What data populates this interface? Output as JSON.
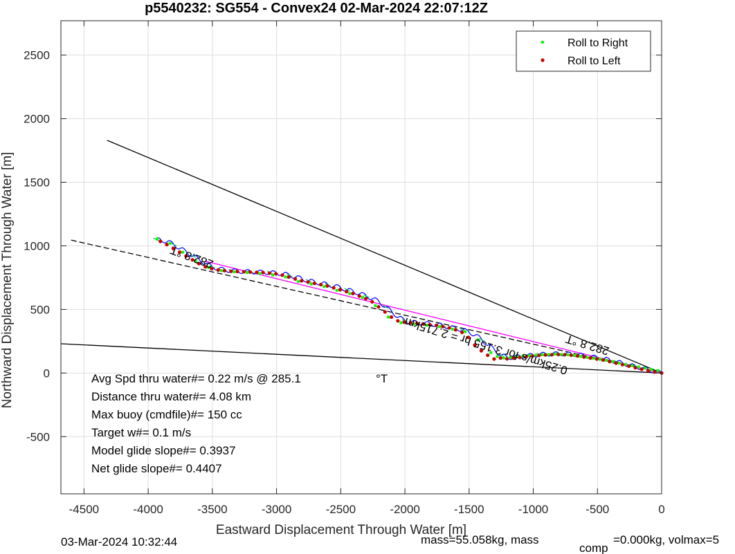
{
  "chart_data": {
    "type": "line",
    "title": "p5540232: SG554 - Convex24 02-Mar-2024 22:07:12Z",
    "xlabel": "Eastward Displacement Through Water [m]",
    "ylabel": "Northward Displacement Through Water [m]",
    "xlim": [
      -4680,
      0
    ],
    "ylim": [
      -950,
      2770
    ],
    "xticks": [
      -4500,
      -4000,
      -3500,
      -3000,
      -2500,
      -2000,
      -1500,
      -1000,
      -500,
      0
    ],
    "yticks": [
      -500,
      0,
      500,
      1000,
      1500,
      2000,
      2500
    ],
    "grid": true,
    "legend": {
      "placement": "top-right",
      "entries": [
        "Roll to Right",
        "Roll to Left"
      ]
    },
    "reference_lines": [
      {
        "x": [
          -4320,
          0
        ],
        "y": [
          1830,
          0
        ],
        "color": "#000000",
        "style": "solid"
      },
      {
        "x": [
          -4680,
          0
        ],
        "y": [
          230,
          0
        ],
        "color": "#000000",
        "style": "solid"
      },
      {
        "x": [
          -4600,
          0
        ],
        "y": [
          1045,
          0
        ],
        "color": "#000000",
        "style": "dashed"
      },
      {
        "x": [
          -3560,
          0
        ],
        "y": [
          880,
          0
        ],
        "color": "#ff00ff",
        "style": "solid"
      }
    ],
    "track": {
      "x": [
        0,
        -50,
        -100,
        -150,
        -200,
        -250,
        -300,
        -350,
        -400,
        -450,
        -500,
        -550,
        -600,
        -650,
        -700,
        -750,
        -800,
        -850,
        -900,
        -950,
        -1000,
        -1050,
        -1100,
        -1150,
        -1200,
        -1250,
        -1300,
        -1350,
        -1400,
        -1450,
        -1500,
        -1550,
        -1600,
        -1650,
        -1700,
        -1750,
        -1800,
        -1850,
        -1900,
        -1950,
        -2000,
        -2050,
        -2100,
        -2150,
        -2200,
        -2250,
        -2300,
        -2350,
        -2400,
        -2450,
        -2500,
        -2550,
        -2600,
        -2650,
        -2700,
        -2750,
        -2800,
        -2850,
        -2900,
        -2950,
        -3000,
        -3050,
        -3100,
        -3150,
        -3200,
        -3250,
        -3300,
        -3350,
        -3400,
        -3450,
        -3500,
        -3550,
        -3600,
        -3650,
        -3700,
        -3750,
        -3800,
        -3850,
        -3900,
        -3940
      ],
      "y": [
        0,
        12,
        25,
        38,
        50,
        62,
        75,
        88,
        100,
        112,
        120,
        128,
        135,
        142,
        148,
        150,
        152,
        150,
        148,
        145,
        140,
        135,
        130,
        125,
        120,
        140,
        180,
        220,
        260,
        300,
        320,
        340,
        350,
        360,
        370,
        380,
        385,
        390,
        395,
        400,
        410,
        440,
        480,
        520,
        560,
        585,
        605,
        625,
        640,
        655,
        670,
        685,
        695,
        705,
        715,
        725,
        740,
        755,
        770,
        780,
        785,
        790,
        792,
        794,
        796,
        798,
        800,
        805,
        810,
        820,
        835,
        860,
        890,
        920,
        950,
        980,
        1010,
        1035,
        1045,
        1050
      ]
    },
    "roll_right": {
      "x": [
        -30,
        -80,
        -130,
        -180,
        -230,
        -280,
        -330,
        -380,
        -430,
        -480,
        -530,
        -580,
        -630,
        -680,
        -730,
        -780,
        -830,
        -880,
        -930,
        -980,
        -1030,
        -1080,
        -1130,
        -1180,
        -1230,
        -1280,
        -1330,
        -1430,
        -1530,
        -1630,
        -1730,
        -1830,
        -1930,
        -2030,
        -2130,
        -2230,
        -2330,
        -2430,
        -2530,
        -2630,
        -2730,
        -2830,
        -2930,
        -3030,
        -3130,
        -3230,
        -3330,
        -3430,
        -3530,
        -3630,
        -3730,
        -3830,
        -3930
      ],
      "y": [
        20,
        28,
        38,
        48,
        58,
        68,
        78,
        90,
        100,
        108,
        115,
        122,
        130,
        138,
        144,
        146,
        148,
        146,
        144,
        141,
        137,
        133,
        128,
        123,
        118,
        130,
        160,
        260,
        325,
        345,
        365,
        375,
        385,
        395,
        440,
        530,
        595,
        625,
        650,
        680,
        700,
        720,
        755,
        770,
        782,
        790,
        796,
        805,
        830,
        880,
        950,
        1020,
        1055
      ]
    },
    "roll_left": {
      "x": [
        0,
        -55,
        -105,
        -155,
        -205,
        -255,
        -305,
        -355,
        -405,
        -455,
        -505,
        -555,
        -605,
        -655,
        -705,
        -755,
        -805,
        -855,
        -905,
        -955,
        -1005,
        -1055,
        -1105,
        -1155,
        -1205,
        -1255,
        -1305,
        -1355,
        -1405,
        -1455,
        -1505,
        -1555,
        -1605,
        -1655,
        -1705,
        -1755,
        -1805,
        -1855,
        -1905,
        -1955,
        -2005,
        -2055,
        -2105,
        -2155,
        -2205,
        -2255,
        -2305,
        -2355,
        -2405,
        -2455,
        -2505,
        -2555,
        -2605,
        -2655,
        -2705,
        -2755,
        -2805,
        -2855,
        -2905,
        -2955,
        -3005,
        -3055,
        -3105,
        -3155,
        -3205,
        -3255,
        -3305,
        -3355,
        -3405,
        -3455,
        -3505,
        -3555,
        -3605,
        -3655,
        -3705,
        -3755,
        -3805,
        -3855,
        -3905
      ],
      "y": [
        0,
        8,
        18,
        30,
        42,
        54,
        66,
        78,
        90,
        102,
        110,
        118,
        126,
        134,
        140,
        144,
        146,
        144,
        142,
        138,
        134,
        128,
        122,
        118,
        112,
        118,
        110,
        140,
        175,
        220,
        280,
        320,
        340,
        355,
        365,
        375,
        380,
        385,
        390,
        395,
        400,
        410,
        440,
        480,
        520,
        560,
        585,
        605,
        625,
        640,
        655,
        670,
        685,
        695,
        705,
        715,
        725,
        740,
        755,
        770,
        780,
        785,
        790,
        792,
        794,
        796,
        798,
        800,
        805,
        810,
        820,
        835,
        860,
        890,
        920,
        950,
        980,
        1010,
        1035
      ]
    },
    "track_labels": [
      {
        "text": "282.8 °T",
        "x": -3650,
        "y": 940,
        "rotation": 200
      },
      {
        "text": "282.8 °T",
        "x": -570,
        "y": 250,
        "rotation": 197
      },
      {
        "text": "0.25km/s for 3.155 hr = 2.715km",
        "x": -1360,
        "y": 240,
        "rotation": 197
      }
    ],
    "annotations": [
      "Avg Spd thru water#=  0.22 m/s @ 285.1",
      "Distance thru water#=  4.08 km",
      "Max buoy (cmdfile)#= 150 cc",
      "Target w#= 0.1 m/s",
      "Model glide slope#= 0.3937",
      "Net glide slope#= 0.4407"
    ],
    "annotation_unit": "°T",
    "footer_left": "03-Mar-2024 10:32:44",
    "footer_right_main": "mass=55.058kg, mass",
    "footer_right_sub": "comp",
    "footer_right_tail": "=0.000kg, volmax=5"
  },
  "colors": {
    "roll_right": "#00ff00",
    "roll_left": "#cc0000",
    "track": "#0000ff",
    "trend": "#ff00ff",
    "reference": "#000000",
    "grid": "#dedede"
  }
}
